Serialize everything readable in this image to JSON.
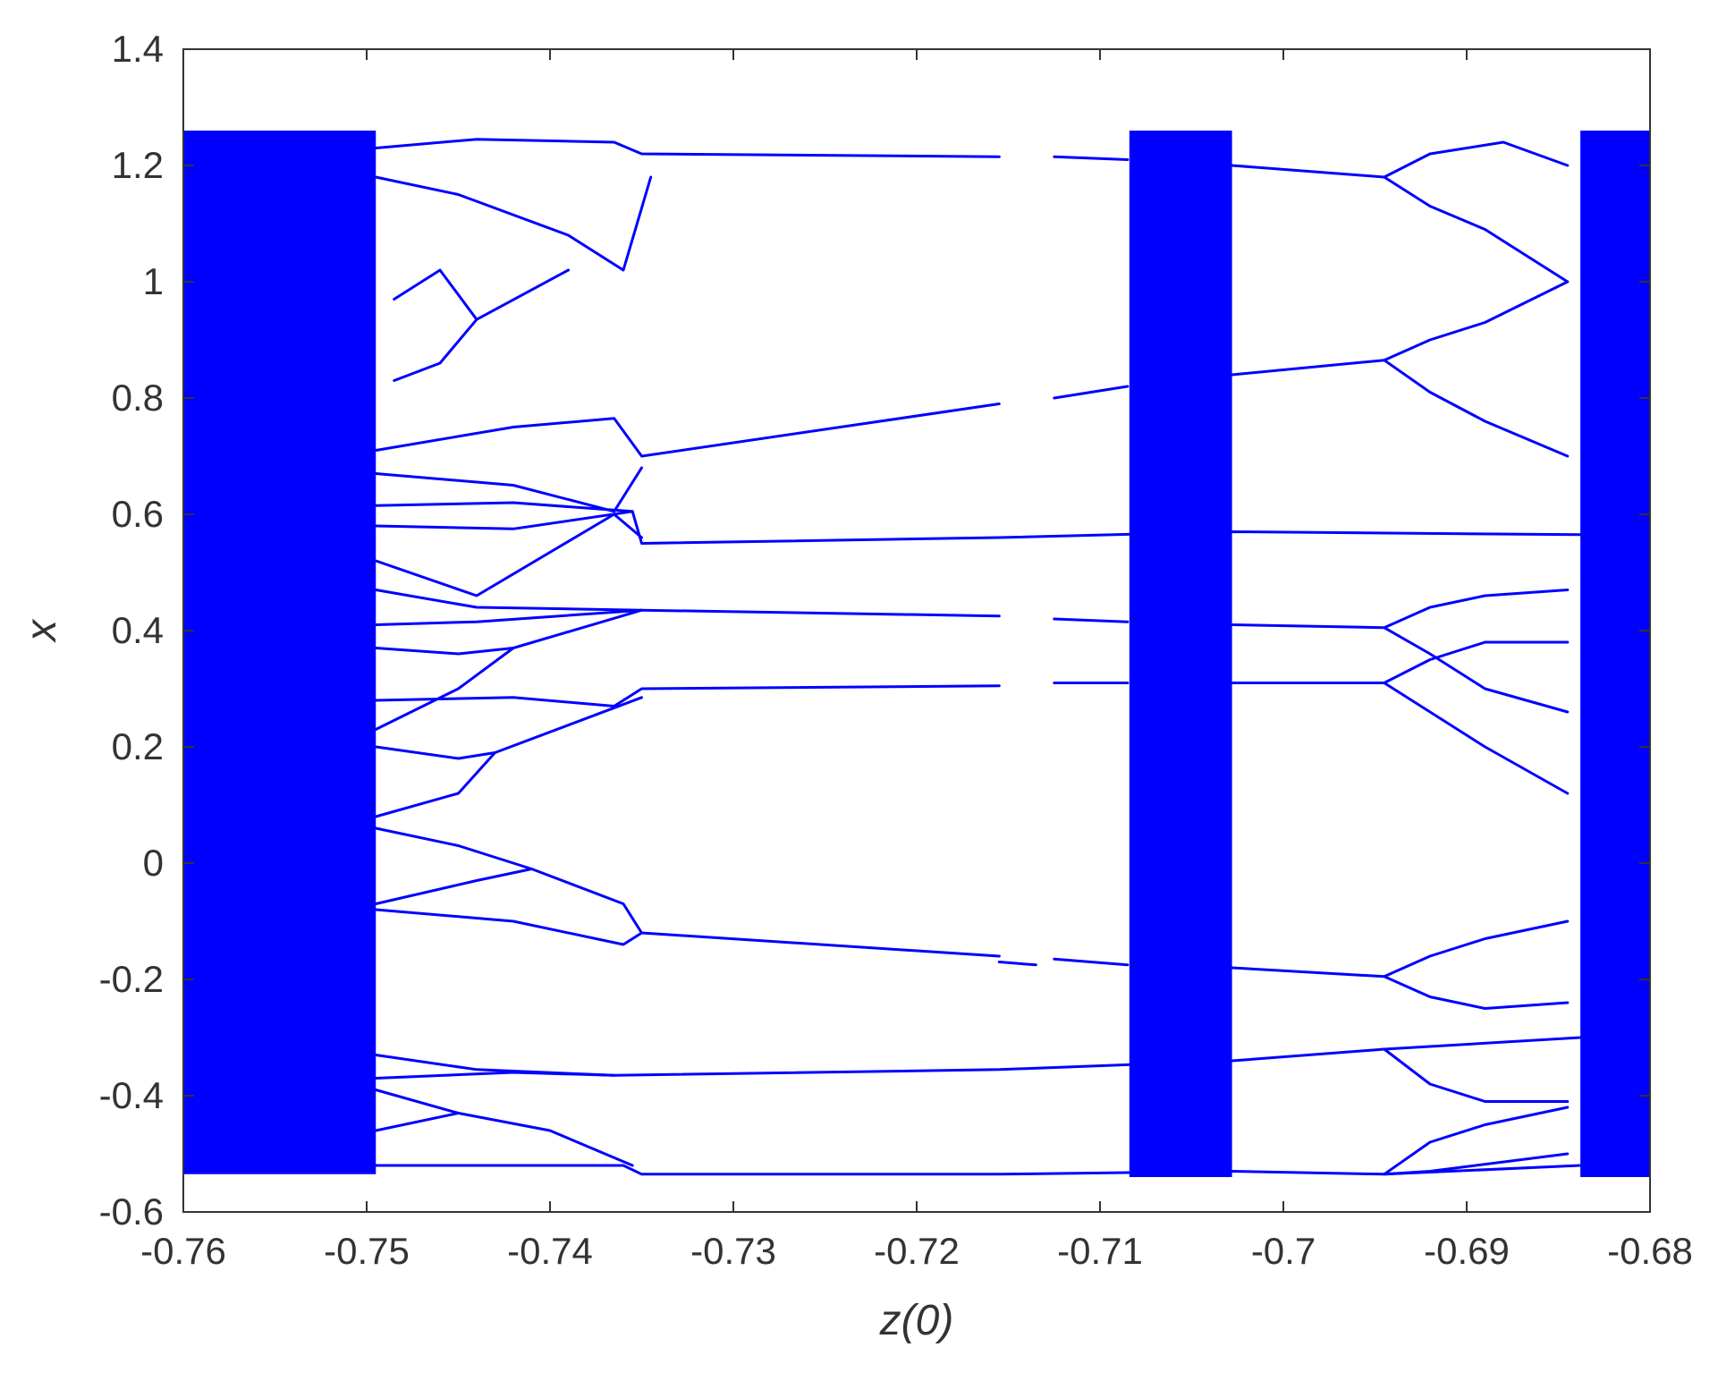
{
  "chart_data": {
    "type": "scatter",
    "title": "",
    "xlabel": "z(0)",
    "ylabel": "x",
    "xlim": [
      -0.76,
      -0.68
    ],
    "ylim": [
      -0.6,
      1.4
    ],
    "xticks": [
      -0.76,
      -0.75,
      -0.74,
      -0.73,
      -0.72,
      -0.71,
      -0.7,
      -0.69,
      -0.68
    ],
    "xtick_labels": [
      "-0.76",
      "-0.75",
      "-0.74",
      "-0.73",
      "-0.72",
      "-0.71",
      "-0.7",
      "-0.69",
      "-0.68"
    ],
    "yticks": [
      -0.6,
      -0.4,
      -0.2,
      0,
      0.2,
      0.4,
      0.6,
      0.8,
      1,
      1.2,
      1.4
    ],
    "ytick_labels": [
      "-0.6",
      "-0.4",
      "-0.2",
      "0",
      "0.2",
      "0.4",
      "0.6",
      "0.8",
      "1",
      "1.2",
      "1.4"
    ],
    "grid": false,
    "legend": "none",
    "color": "#0000ff",
    "series": [
      {
        "kind": "chaotic-band",
        "x_range": [
          -0.76,
          -0.7495
        ],
        "y_range": [
          -0.535,
          1.26
        ]
      },
      {
        "kind": "chaotic-band",
        "x_range": [
          -0.7084,
          -0.7028
        ],
        "y_range": [
          -0.54,
          1.26
        ]
      },
      {
        "kind": "chaotic-band",
        "x_range": [
          -0.6838,
          -0.68
        ],
        "y_range": [
          -0.54,
          1.26
        ]
      },
      {
        "kind": "branch",
        "points": [
          [
            -0.7495,
            1.23
          ],
          [
            -0.744,
            1.245
          ],
          [
            -0.7365,
            1.24
          ],
          [
            -0.735,
            1.22
          ],
          [
            -0.7155,
            1.215
          ]
        ]
      },
      {
        "kind": "branch",
        "points": [
          [
            -0.7495,
            1.18
          ],
          [
            -0.745,
            1.15
          ],
          [
            -0.739,
            1.08
          ],
          [
            -0.736,
            1.02
          ],
          [
            -0.7345,
            1.18
          ]
        ]
      },
      {
        "kind": "branch",
        "points": [
          [
            -0.7485,
            0.97
          ],
          [
            -0.746,
            1.02
          ],
          [
            -0.744,
            0.935
          ],
          [
            -0.739,
            1.02
          ]
        ]
      },
      {
        "kind": "branch",
        "points": [
          [
            -0.7485,
            0.83
          ],
          [
            -0.746,
            0.86
          ],
          [
            -0.744,
            0.935
          ]
        ]
      },
      {
        "kind": "branch",
        "points": [
          [
            -0.7495,
            0.71
          ],
          [
            -0.742,
            0.75
          ],
          [
            -0.7365,
            0.765
          ],
          [
            -0.735,
            0.7
          ],
          [
            -0.7155,
            0.79
          ]
        ]
      },
      {
        "kind": "branch",
        "points": [
          [
            -0.7495,
            0.67
          ],
          [
            -0.742,
            0.65
          ],
          [
            -0.7365,
            0.605
          ],
          [
            -0.735,
            0.68
          ]
        ]
      },
      {
        "kind": "branch",
        "points": [
          [
            -0.7495,
            0.615
          ],
          [
            -0.742,
            0.62
          ],
          [
            -0.7355,
            0.605
          ]
        ]
      },
      {
        "kind": "branch",
        "points": [
          [
            -0.7495,
            0.58
          ],
          [
            -0.742,
            0.575
          ],
          [
            -0.7355,
            0.605
          ],
          [
            -0.735,
            0.55
          ],
          [
            -0.7155,
            0.56
          ],
          [
            -0.7028,
            0.57
          ],
          [
            -0.6838,
            0.565
          ]
        ]
      },
      {
        "kind": "branch",
        "points": [
          [
            -0.7495,
            0.52
          ],
          [
            -0.744,
            0.46
          ],
          [
            -0.7365,
            0.6
          ],
          [
            -0.735,
            0.56
          ]
        ]
      },
      {
        "kind": "branch",
        "points": [
          [
            -0.7495,
            0.47
          ],
          [
            -0.744,
            0.44
          ],
          [
            -0.735,
            0.435
          ],
          [
            -0.7155,
            0.425
          ]
        ]
      },
      {
        "kind": "branch",
        "points": [
          [
            -0.7495,
            0.41
          ],
          [
            -0.744,
            0.415
          ],
          [
            -0.735,
            0.435
          ]
        ]
      },
      {
        "kind": "branch",
        "points": [
          [
            -0.7495,
            0.37
          ],
          [
            -0.745,
            0.36
          ],
          [
            -0.742,
            0.37
          ],
          [
            -0.735,
            0.435
          ]
        ]
      },
      {
        "kind": "branch",
        "points": [
          [
            -0.7495,
            0.23
          ],
          [
            -0.745,
            0.3
          ],
          [
            -0.742,
            0.37
          ]
        ]
      },
      {
        "kind": "branch",
        "points": [
          [
            -0.7495,
            0.28
          ],
          [
            -0.742,
            0.285
          ],
          [
            -0.7365,
            0.27
          ],
          [
            -0.735,
            0.3
          ],
          [
            -0.7155,
            0.305
          ]
        ]
      },
      {
        "kind": "branch",
        "points": [
          [
            -0.7495,
            0.2
          ],
          [
            -0.745,
            0.18
          ],
          [
            -0.743,
            0.19
          ],
          [
            -0.735,
            0.285
          ]
        ]
      },
      {
        "kind": "branch",
        "points": [
          [
            -0.7495,
            0.08
          ],
          [
            -0.745,
            0.12
          ],
          [
            -0.743,
            0.19
          ]
        ]
      },
      {
        "kind": "branch",
        "points": [
          [
            -0.7495,
            0.06
          ],
          [
            -0.745,
            0.03
          ],
          [
            -0.741,
            -0.01
          ],
          [
            -0.736,
            -0.07
          ],
          [
            -0.735,
            -0.12
          ],
          [
            -0.7155,
            -0.16
          ]
        ]
      },
      {
        "kind": "branch",
        "points": [
          [
            -0.7495,
            -0.07
          ],
          [
            -0.744,
            -0.03
          ],
          [
            -0.741,
            -0.01
          ]
        ]
      },
      {
        "kind": "branch",
        "points": [
          [
            -0.7495,
            -0.08
          ],
          [
            -0.742,
            -0.1
          ],
          [
            -0.736,
            -0.14
          ],
          [
            -0.735,
            -0.12
          ]
        ]
      },
      {
        "kind": "branch",
        "points": [
          [
            -0.7495,
            -0.33
          ],
          [
            -0.744,
            -0.355
          ],
          [
            -0.7365,
            -0.365
          ],
          [
            -0.7155,
            -0.355
          ],
          [
            -0.7028,
            -0.34
          ],
          [
            -0.6945,
            -0.32
          ],
          [
            -0.6838,
            -0.3
          ]
        ]
      },
      {
        "kind": "branch",
        "points": [
          [
            -0.7495,
            -0.37
          ],
          [
            -0.742,
            -0.36
          ],
          [
            -0.7365,
            -0.365
          ]
        ]
      },
      {
        "kind": "branch",
        "points": [
          [
            -0.7495,
            -0.39
          ],
          [
            -0.745,
            -0.43
          ],
          [
            -0.74,
            -0.46
          ],
          [
            -0.7355,
            -0.52
          ]
        ]
      },
      {
        "kind": "branch",
        "points": [
          [
            -0.7495,
            -0.46
          ],
          [
            -0.745,
            -0.43
          ]
        ]
      },
      {
        "kind": "branch",
        "points": [
          [
            -0.7495,
            -0.52
          ],
          [
            -0.736,
            -0.52
          ],
          [
            -0.735,
            -0.535
          ],
          [
            -0.7155,
            -0.535
          ],
          [
            -0.7028,
            -0.53
          ],
          [
            -0.6945,
            -0.535
          ],
          [
            -0.6838,
            -0.52
          ]
        ]
      },
      {
        "kind": "branch",
        "points": [
          [
            -0.7155,
            -0.17
          ],
          [
            -0.7135,
            -0.175
          ]
        ]
      },
      {
        "kind": "branch",
        "points": [
          [
            -0.7125,
            1.215
          ],
          [
            -0.7085,
            1.21
          ]
        ]
      },
      {
        "kind": "branch",
        "points": [
          [
            -0.7125,
            0.8
          ],
          [
            -0.7085,
            0.82
          ]
        ]
      },
      {
        "kind": "branch",
        "points": [
          [
            -0.7125,
            0.42
          ],
          [
            -0.7085,
            0.415
          ]
        ]
      },
      {
        "kind": "branch",
        "points": [
          [
            -0.7125,
            0.31
          ],
          [
            -0.7085,
            0.31
          ]
        ]
      },
      {
        "kind": "branch",
        "points": [
          [
            -0.7125,
            -0.165
          ],
          [
            -0.7085,
            -0.175
          ]
        ]
      },
      {
        "kind": "branch",
        "points": [
          [
            -0.7028,
            1.2
          ],
          [
            -0.6945,
            1.18
          ],
          [
            -0.692,
            1.13
          ],
          [
            -0.689,
            1.09
          ],
          [
            -0.6845,
            1.0
          ]
        ]
      },
      {
        "kind": "branch",
        "points": [
          [
            -0.6945,
            1.18
          ],
          [
            -0.692,
            1.22
          ],
          [
            -0.688,
            1.24
          ],
          [
            -0.6845,
            1.2
          ]
        ]
      },
      {
        "kind": "branch",
        "points": [
          [
            -0.7028,
            0.84
          ],
          [
            -0.6945,
            0.865
          ],
          [
            -0.692,
            0.9
          ],
          [
            -0.689,
            0.93
          ],
          [
            -0.6845,
            1.0
          ]
        ]
      },
      {
        "kind": "branch",
        "points": [
          [
            -0.6945,
            0.865
          ],
          [
            -0.692,
            0.81
          ],
          [
            -0.689,
            0.76
          ],
          [
            -0.6845,
            0.7
          ]
        ]
      },
      {
        "kind": "branch",
        "points": [
          [
            -0.7028,
            0.41
          ],
          [
            -0.6945,
            0.405
          ],
          [
            -0.692,
            0.36
          ],
          [
            -0.689,
            0.3
          ],
          [
            -0.6845,
            0.26
          ]
        ]
      },
      {
        "kind": "branch",
        "points": [
          [
            -0.6945,
            0.405
          ],
          [
            -0.692,
            0.44
          ],
          [
            -0.689,
            0.46
          ],
          [
            -0.6845,
            0.47
          ]
        ]
      },
      {
        "kind": "branch",
        "points": [
          [
            -0.7028,
            0.31
          ],
          [
            -0.6945,
            0.31
          ],
          [
            -0.692,
            0.35
          ],
          [
            -0.689,
            0.38
          ],
          [
            -0.6845,
            0.38
          ]
        ]
      },
      {
        "kind": "branch",
        "points": [
          [
            -0.6945,
            0.31
          ],
          [
            -0.692,
            0.26
          ],
          [
            -0.689,
            0.2
          ],
          [
            -0.6845,
            0.12
          ]
        ]
      },
      {
        "kind": "branch",
        "points": [
          [
            -0.7028,
            -0.18
          ],
          [
            -0.6945,
            -0.195
          ],
          [
            -0.692,
            -0.16
          ],
          [
            -0.689,
            -0.13
          ],
          [
            -0.6845,
            -0.1
          ]
        ]
      },
      {
        "kind": "branch",
        "points": [
          [
            -0.6945,
            -0.195
          ],
          [
            -0.692,
            -0.23
          ],
          [
            -0.689,
            -0.25
          ],
          [
            -0.6845,
            -0.24
          ]
        ]
      },
      {
        "kind": "branch",
        "points": [
          [
            -0.6945,
            -0.32
          ],
          [
            -0.692,
            -0.38
          ],
          [
            -0.689,
            -0.41
          ],
          [
            -0.6845,
            -0.41
          ]
        ]
      },
      {
        "kind": "branch",
        "points": [
          [
            -0.6945,
            -0.535
          ],
          [
            -0.692,
            -0.48
          ],
          [
            -0.689,
            -0.45
          ],
          [
            -0.6845,
            -0.42
          ]
        ]
      },
      {
        "kind": "branch",
        "points": [
          [
            -0.6945,
            -0.535
          ],
          [
            -0.692,
            -0.53
          ],
          [
            -0.6845,
            -0.5
          ]
        ]
      }
    ]
  }
}
